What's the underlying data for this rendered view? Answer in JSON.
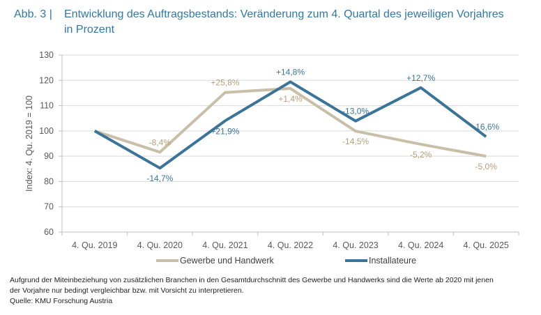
{
  "header": {
    "figure_label": "Abb. 3 |",
    "title_line1": "Entwicklung des Auftragsbestands: Veränderung zum 4. Quartal des jeweiligen Vorjahres",
    "title_line2": "in Prozent"
  },
  "colors": {
    "title": "#2f78a8",
    "gewerbe": "#c9bfa8",
    "gewerbe_label": "#b49f7b",
    "installateure": "#3a7499",
    "installateure_label": "#3a7499",
    "grid": "#d9d9d9",
    "axis": "#bfbfbf"
  },
  "chart_data": {
    "type": "line",
    "title": "Entwicklung des Auftragsbestands: Veränderung zum 4. Quartal des jeweiligen Vorjahres in Prozent",
    "xlabel": "",
    "ylabel": "Index: 4. Qu. 2019 = 100",
    "ylim": [
      60,
      130
    ],
    "yticks": [
      60,
      70,
      80,
      90,
      100,
      110,
      120,
      130
    ],
    "grid": true,
    "legend_position": "bottom",
    "categories": [
      "4. Qu. 2019",
      "4. Qu. 2020",
      "4. Qu. 2021",
      "4. Qu. 2022",
      "4. Qu. 2023",
      "4. Qu. 2024",
      "4. Qu. 2025"
    ],
    "series": [
      {
        "name": "Gewerbe und Handwerk",
        "values": [
          100,
          91.6,
          115.2,
          116.8,
          99.9,
          94.7,
          90.0
        ],
        "labels": [
          "",
          "-8,4%",
          "+25,8%",
          "+1,4%",
          "-14,5%",
          "-5,2%",
          "-5,0%"
        ],
        "label_positions": [
          "",
          "above",
          "above",
          "below",
          "below",
          "below",
          "below"
        ]
      },
      {
        "name": "Installateure",
        "values": [
          100,
          85.3,
          104.0,
          119.4,
          103.9,
          117.1,
          97.7
        ],
        "labels": [
          "",
          "-14,7%",
          "+21,9%",
          "+14,8%",
          "-13,0%",
          "+12,7%",
          "-16,6%"
        ],
        "label_positions": [
          "",
          "below",
          "below",
          "above",
          "above",
          "above",
          "above"
        ]
      }
    ]
  },
  "footer": {
    "note_line1": "Aufgrund der Miteinbeziehung von zusätzlichen Branchen in den Gesamtdurchschnitt des Gewerbe und Handwerks sind die Werte ab 2020 mit jenen",
    "note_line2": "der Vorjahre nur bedingt vergleichbar bzw. mit Vorsicht zu interpretieren.",
    "source": "Quelle: KMU Forschung Austria"
  }
}
